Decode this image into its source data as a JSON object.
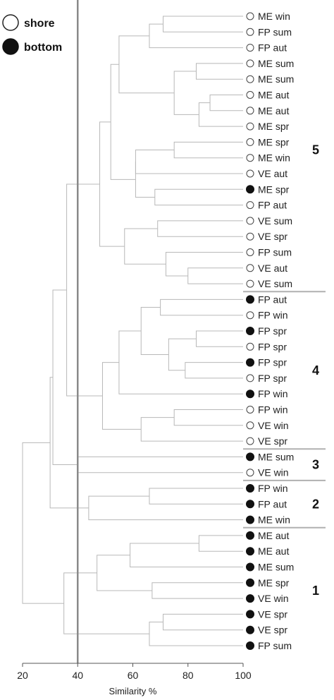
{
  "legend": [
    {
      "label": "shore",
      "symbol": "open-circle"
    },
    {
      "label": "bottom",
      "symbol": "filled-circle"
    }
  ],
  "chart_data": {
    "type": "dendrogram",
    "xlabel": "Similarity %",
    "xlim": [
      20,
      100
    ],
    "xticks": [
      20,
      40,
      60,
      80,
      100
    ],
    "reference_line": 40,
    "leaves": [
      {
        "label": "ME win",
        "habitat": "shore"
      },
      {
        "label": "FP sum",
        "habitat": "shore"
      },
      {
        "label": "FP aut",
        "habitat": "shore"
      },
      {
        "label": "ME sum",
        "habitat": "shore"
      },
      {
        "label": "ME sum",
        "habitat": "shore"
      },
      {
        "label": "ME aut",
        "habitat": "shore"
      },
      {
        "label": "ME aut",
        "habitat": "shore"
      },
      {
        "label": "ME spr",
        "habitat": "shore"
      },
      {
        "label": "ME spr",
        "habitat": "shore"
      },
      {
        "label": "ME win",
        "habitat": "shore"
      },
      {
        "label": "VE aut",
        "habitat": "shore"
      },
      {
        "label": "ME spr",
        "habitat": "bottom"
      },
      {
        "label": "FP aut",
        "habitat": "shore"
      },
      {
        "label": "VE sum",
        "habitat": "shore"
      },
      {
        "label": "VE spr",
        "habitat": "shore"
      },
      {
        "label": "FP sum",
        "habitat": "shore"
      },
      {
        "label": "VE aut",
        "habitat": "shore"
      },
      {
        "label": "VE sum",
        "habitat": "shore"
      },
      {
        "label": "FP aut",
        "habitat": "bottom"
      },
      {
        "label": "FP win",
        "habitat": "shore"
      },
      {
        "label": "FP spr",
        "habitat": "bottom"
      },
      {
        "label": "FP spr",
        "habitat": "shore"
      },
      {
        "label": "FP spr",
        "habitat": "bottom"
      },
      {
        "label": "FP spr",
        "habitat": "shore"
      },
      {
        "label": "FP win",
        "habitat": "bottom"
      },
      {
        "label": "FP win",
        "habitat": "shore"
      },
      {
        "label": "VE win",
        "habitat": "shore"
      },
      {
        "label": "VE spr",
        "habitat": "shore"
      },
      {
        "label": "ME sum",
        "habitat": "bottom"
      },
      {
        "label": "VE win",
        "habitat": "shore"
      },
      {
        "label": "FP win",
        "habitat": "bottom"
      },
      {
        "label": "FP aut",
        "habitat": "bottom"
      },
      {
        "label": "ME win",
        "habitat": "bottom"
      },
      {
        "label": "ME aut",
        "habitat": "bottom"
      },
      {
        "label": "ME aut",
        "habitat": "bottom"
      },
      {
        "label": "ME sum",
        "habitat": "bottom"
      },
      {
        "label": "ME spr",
        "habitat": "bottom"
      },
      {
        "label": "VE win",
        "habitat": "bottom"
      },
      {
        "label": "VE spr",
        "habitat": "bottom"
      },
      {
        "label": "VE spr",
        "habitat": "bottom"
      },
      {
        "label": "FP sum",
        "habitat": "bottom"
      }
    ],
    "merges": [
      {
        "a": 0,
        "b": 1,
        "similarity": 71
      },
      {
        "a": 41,
        "b": 2,
        "similarity": 66
      },
      {
        "a": 3,
        "b": 4,
        "similarity": 83
      },
      {
        "a": 5,
        "b": 6,
        "similarity": 88
      },
      {
        "a": 44,
        "b": 7,
        "similarity": 84
      },
      {
        "a": 43,
        "b": 45,
        "similarity": 75
      },
      {
        "a": 42,
        "b": 46,
        "similarity": 55
      },
      {
        "a": 8,
        "b": 9,
        "similarity": 75
      },
      {
        "a": 48,
        "b": 10,
        "similarity": 61
      },
      {
        "a": 11,
        "b": 12,
        "similarity": 68
      },
      {
        "a": 49,
        "b": 50,
        "similarity": 61
      },
      {
        "a": 47,
        "b": 51,
        "similarity": 52
      },
      {
        "a": 13,
        "b": 14,
        "similarity": 69
      },
      {
        "a": 16,
        "b": 17,
        "similarity": 80
      },
      {
        "a": 15,
        "b": 54,
        "similarity": 72
      },
      {
        "a": 53,
        "b": 55,
        "similarity": 57
      },
      {
        "a": 52,
        "b": 56,
        "similarity": 48
      },
      {
        "a": 18,
        "b": 19,
        "similarity": 70
      },
      {
        "a": 20,
        "b": 21,
        "similarity": 83
      },
      {
        "a": 22,
        "b": 23,
        "similarity": 79
      },
      {
        "a": 59,
        "b": 60,
        "similarity": 73
      },
      {
        "a": 58,
        "b": 61,
        "similarity": 63
      },
      {
        "a": 62,
        "b": 24,
        "similarity": 55
      },
      {
        "a": 25,
        "b": 26,
        "similarity": 75
      },
      {
        "a": 64,
        "b": 27,
        "similarity": 63
      },
      {
        "a": 63,
        "b": 65,
        "similarity": 49
      },
      {
        "a": 57,
        "b": 66,
        "similarity": 36
      },
      {
        "a": 28,
        "b": 29,
        "similarity": 40
      },
      {
        "a": 67,
        "b": 68,
        "similarity": 31
      },
      {
        "a": 30,
        "b": 31,
        "similarity": 66
      },
      {
        "a": 70,
        "b": 32,
        "similarity": 44
      },
      {
        "a": 69,
        "b": 71,
        "similarity": 30
      },
      {
        "a": 33,
        "b": 34,
        "similarity": 84
      },
      {
        "a": 73,
        "b": 35,
        "similarity": 59
      },
      {
        "a": 36,
        "b": 37,
        "similarity": 67
      },
      {
        "a": 74,
        "b": 75,
        "similarity": 47
      },
      {
        "a": 38,
        "b": 39,
        "similarity": 71
      },
      {
        "a": 77,
        "b": 40,
        "similarity": 66
      },
      {
        "a": 76,
        "b": 78,
        "similarity": 35
      },
      {
        "a": 72,
        "b": 79,
        "similarity": 20
      }
    ],
    "clusters": [
      {
        "label": "5",
        "first_leaf": 0,
        "last_leaf": 17
      },
      {
        "label": "4",
        "first_leaf": 18,
        "last_leaf": 27
      },
      {
        "label": "3",
        "first_leaf": 28,
        "last_leaf": 29
      },
      {
        "label": "2",
        "first_leaf": 30,
        "last_leaf": 32
      },
      {
        "label": "1",
        "first_leaf": 33,
        "last_leaf": 40
      }
    ]
  }
}
